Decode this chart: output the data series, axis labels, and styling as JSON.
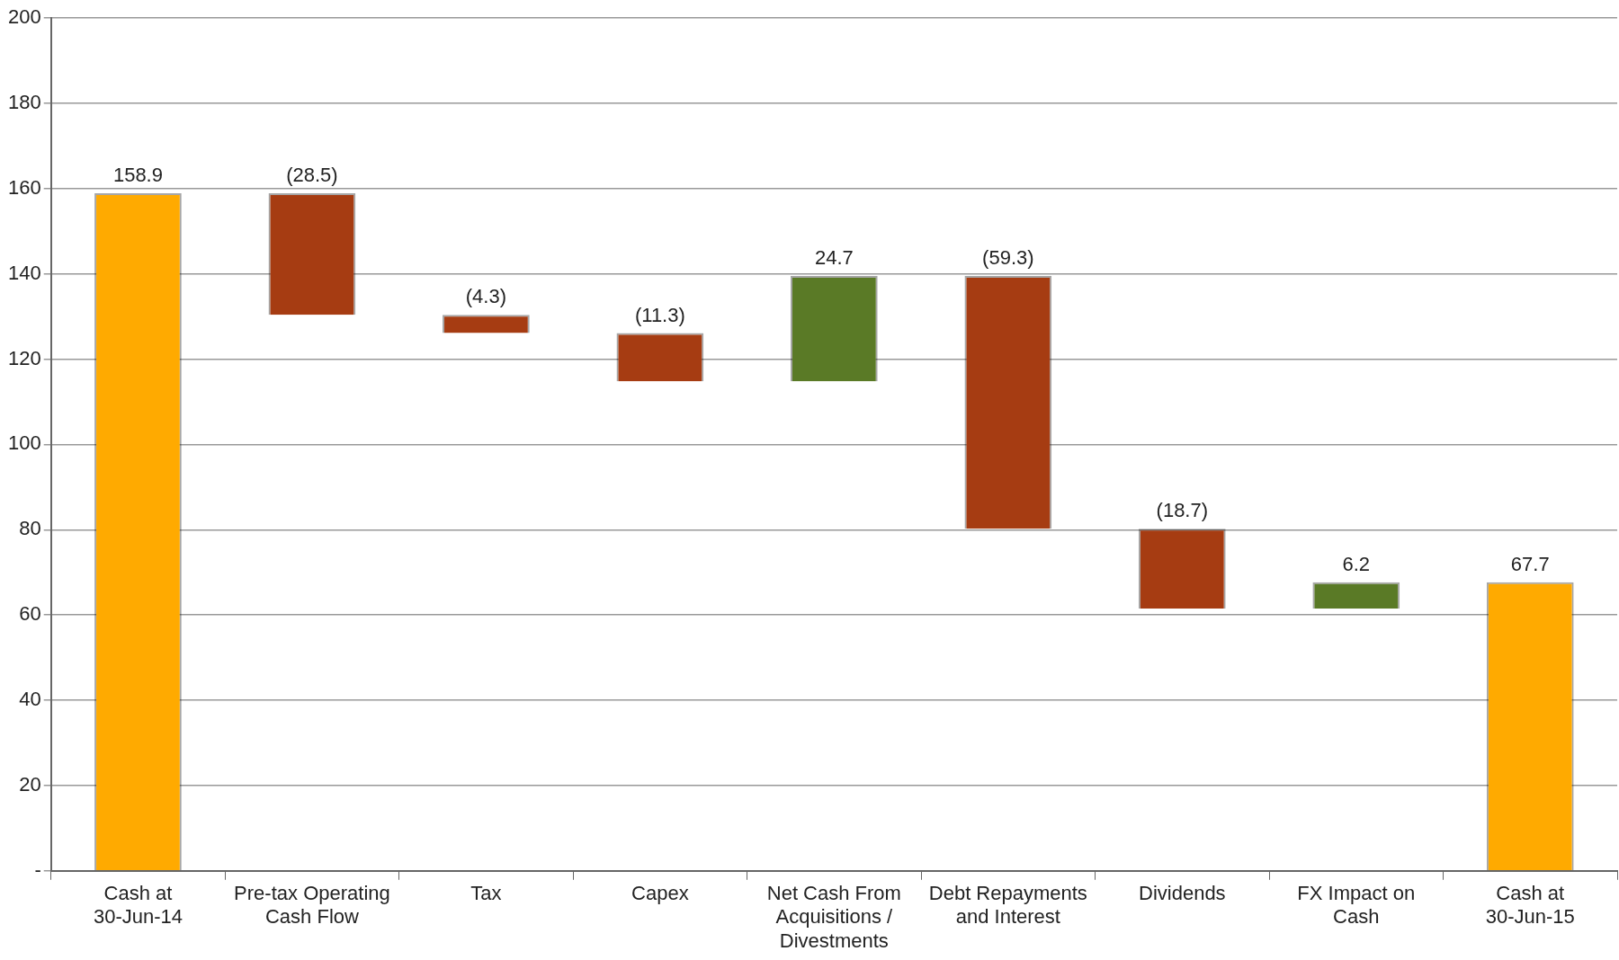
{
  "chart_data": {
    "type": "bar",
    "categories": [
      "Cash at 30-Jun-14",
      "Pre-tax Operating Cash Flow",
      "Tax",
      "Capex",
      "Net Cash From Acquisitions / Divestments",
      "Debt Repayments and Interest",
      "Dividends",
      "FX Impact on Cash",
      "Cash at 30-Jun-15"
    ],
    "values": [
      158.9,
      -28.5,
      -4.3,
      -11.3,
      24.7,
      -59.3,
      -18.7,
      6.2,
      67.7
    ],
    "base": [
      0,
      158.9,
      130.4,
      126.1,
      114.8,
      139.5,
      80.2,
      61.5,
      0
    ],
    "colors": [
      "#ffaa00",
      "#a63c12",
      "#a63c12",
      "#a63c12",
      "#5a7a26",
      "#a63c12",
      "#a63c12",
      "#5a7a26",
      "#ffaa00"
    ],
    "value_labels": [
      "158.9",
      "(28.5)",
      "(4.3)",
      "(11.3)",
      "24.7",
      "(59.3)",
      "(18.7)",
      "6.2",
      "67.7"
    ],
    "ylim": [
      0,
      200
    ],
    "yticks": [
      {
        "value": 0,
        "label": "-"
      },
      20,
      40,
      60,
      80,
      100,
      120,
      140,
      160,
      180,
      200
    ],
    "grid": "y",
    "legend": false
  }
}
